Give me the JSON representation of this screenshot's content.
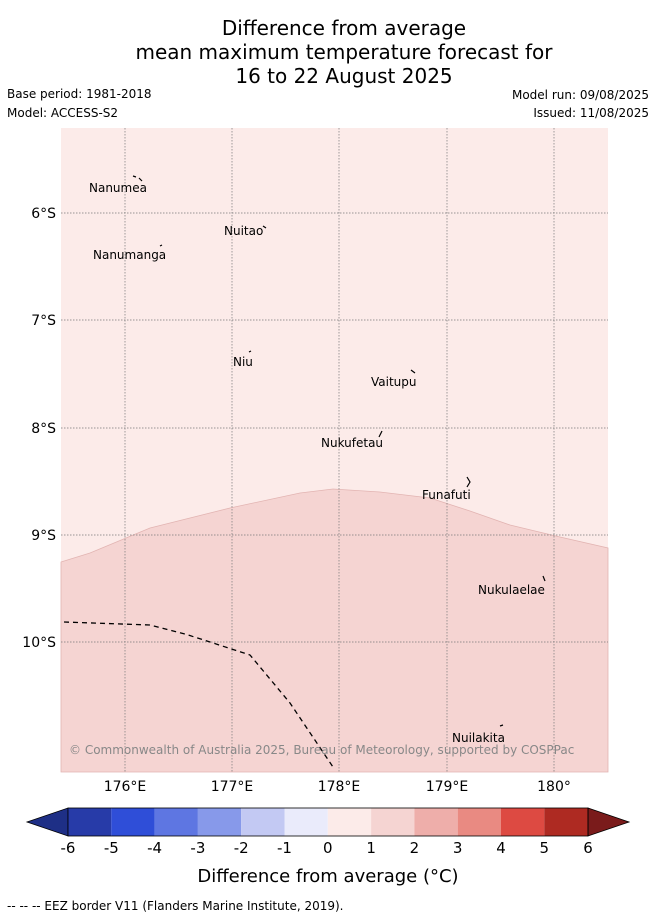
{
  "header": {
    "title_line1": "Difference from average",
    "title_line2": "mean maximum temperature forecast for",
    "title_line3": "16 to 22 August 2025",
    "base_period": "Base period: 1981-2018",
    "model": "Model: ACCESS-S2",
    "model_run": "Model run: 09/08/2025",
    "issued": "Issued: 11/08/2025"
  },
  "map": {
    "lon_labels": [
      "176°E",
      "177°E",
      "178°E",
      "179°E",
      "180°"
    ],
    "lat_labels": [
      "6°S",
      "7°S",
      "8°S",
      "9°S",
      "10°S"
    ],
    "places": [
      {
        "name": "Nanumea"
      },
      {
        "name": "Nuitao"
      },
      {
        "name": "Nanumanga"
      },
      {
        "name": "Niu"
      },
      {
        "name": "Vaitupu"
      },
      {
        "name": "Nukufetau"
      },
      {
        "name": "Funafuti"
      },
      {
        "name": "Nukulaelae"
      },
      {
        "name": "Nuilakita"
      }
    ],
    "copyright": "© Commonwealth of Australia 2025, Bureau of Meteorology, supported by COSPPac",
    "fill_colors": {
      "anomaly_0_1": "#fcebe9",
      "anomaly_1_2": "#f5d4d2"
    }
  },
  "colorbar": {
    "tick_labels": [
      "-6",
      "-5",
      "-4",
      "-3",
      "-2",
      "-1",
      "0",
      "1",
      "2",
      "3",
      "4",
      "5",
      "6"
    ],
    "label": "Difference from average (°C)",
    "colors": [
      "#1e2f86",
      "#273ba8",
      "#2f4ed8",
      "#5e76e2",
      "#8799ea",
      "#c3c9f3",
      "#eaebfb",
      "#fcebe9",
      "#f5d4d2",
      "#eeaeaa",
      "#e98a82",
      "#dd4a42",
      "#ae2a22",
      "#7a1b1b"
    ]
  },
  "footer": {
    "legend_line": "--  --  -- EEZ border V11 (Flanders Marine Institute, 2019)."
  }
}
